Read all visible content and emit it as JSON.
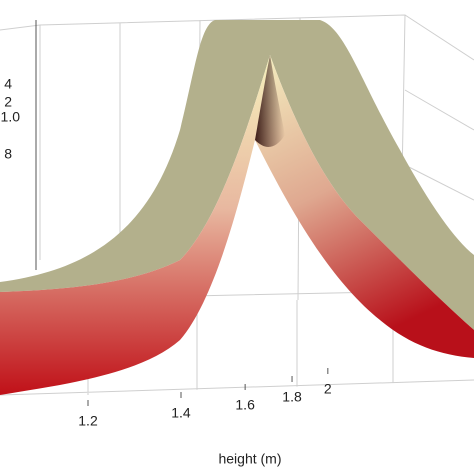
{
  "chart_data": {
    "type": "surface",
    "xlabel": "height (m)",
    "xticks": [
      1.2,
      1.4,
      1.6,
      1.8,
      2
    ],
    "zaxis_labels": [
      "4",
      "2",
      "1.0",
      "8"
    ],
    "surface_top_color": "#b3b08c"
  }
}
